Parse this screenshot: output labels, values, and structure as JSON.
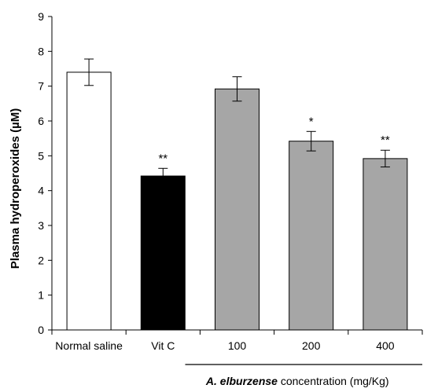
{
  "chart_data": {
    "type": "bar",
    "title": "",
    "xlabel": "",
    "ylabel": "Plasma hydroperoxides (µM)",
    "ylim": [
      0,
      9
    ],
    "yticks": [
      0,
      1,
      2,
      3,
      4,
      5,
      6,
      7,
      8,
      9
    ],
    "grid": false,
    "legend": "none",
    "categories": [
      "Normal saline",
      "Vit C",
      "100",
      "200",
      "400"
    ],
    "values": [
      7.4,
      4.42,
      6.92,
      5.42,
      4.92
    ],
    "errors": [
      0.38,
      0.22,
      0.35,
      0.28,
      0.24
    ],
    "significance": [
      "",
      "**",
      "",
      "*",
      "**"
    ],
    "bar_colors": [
      "#ffffff",
      "#000000",
      "#a6a6a6",
      "#a6a6a6",
      "#a6a6a6"
    ],
    "group_label": {
      "species": "A. elburzense",
      "text": " concentration (mg/Kg)"
    }
  }
}
